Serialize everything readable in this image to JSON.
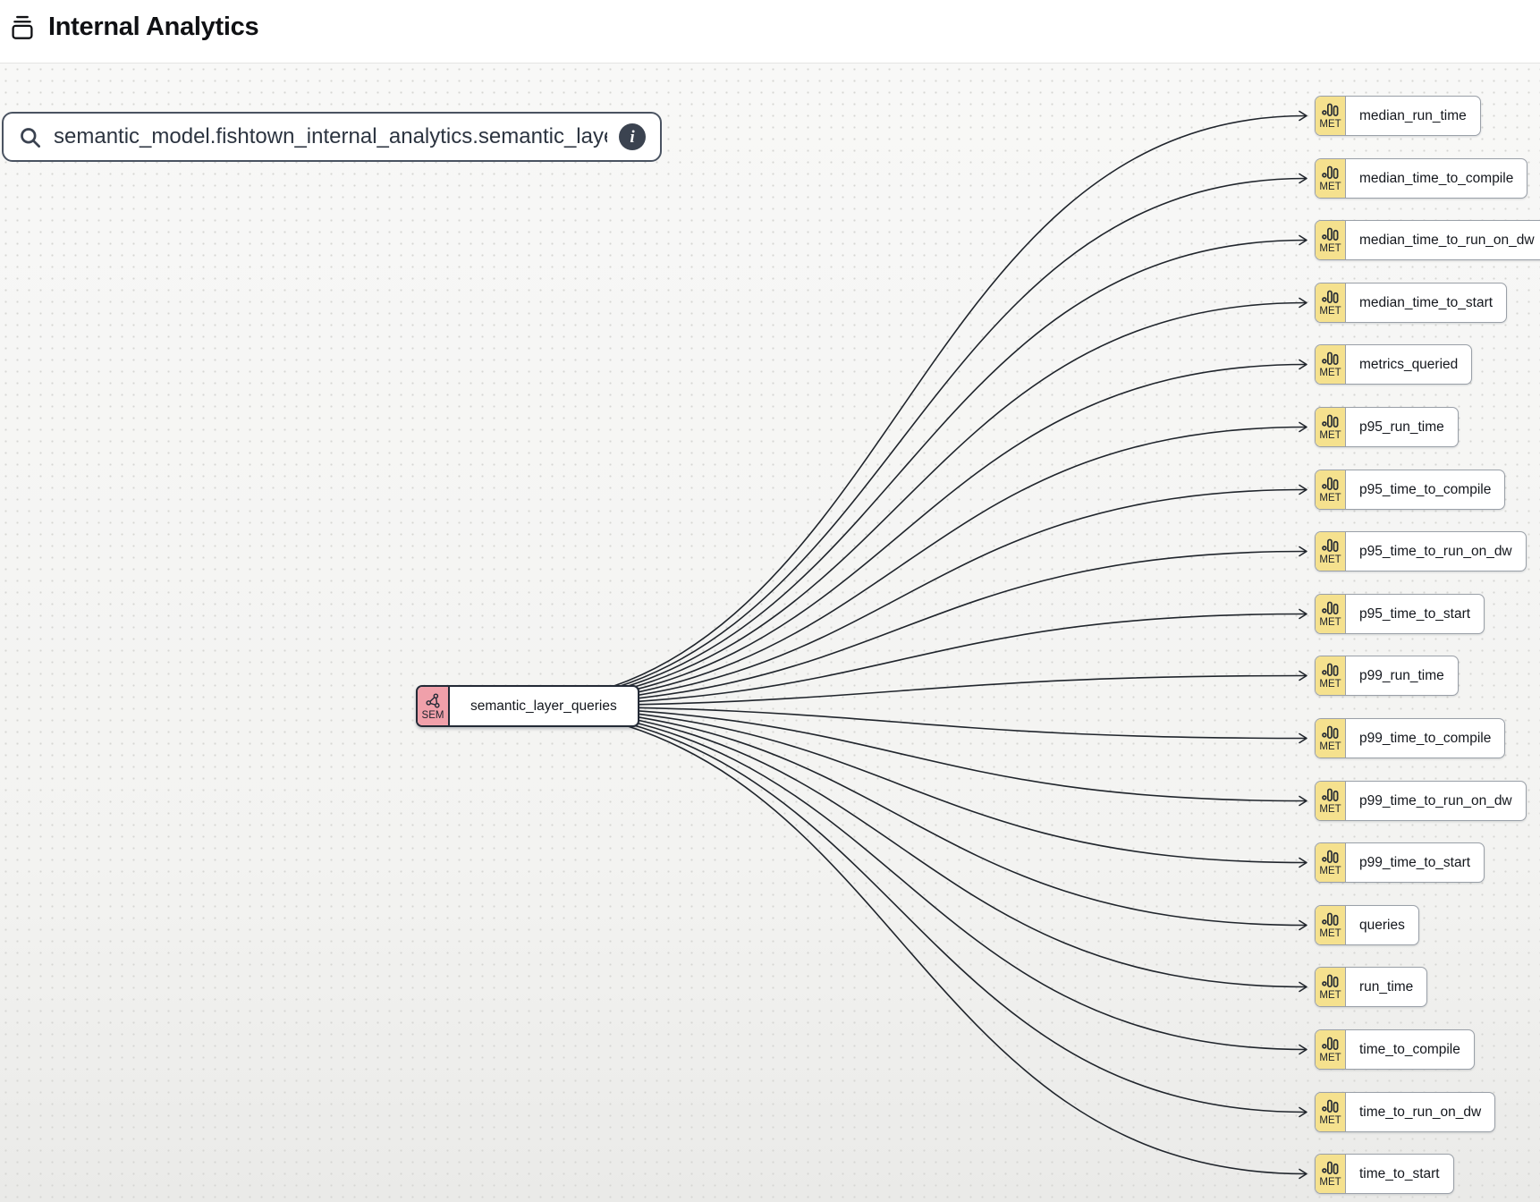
{
  "header": {
    "title": "Internal Analytics"
  },
  "search": {
    "value": "semantic_model.fishtown_internal_analytics.semantic_layer_queries",
    "info_label": "i"
  },
  "lineage": {
    "source_node": {
      "badge": "SEM",
      "label": "semantic_layer_queries"
    },
    "metric_badge": "MET",
    "metric_nodes": [
      {
        "label": "median_run_time"
      },
      {
        "label": "median_time_to_compile"
      },
      {
        "label": "median_time_to_run_on_dw"
      },
      {
        "label": "median_time_to_start"
      },
      {
        "label": "metrics_queried"
      },
      {
        "label": "p95_run_time"
      },
      {
        "label": "p95_time_to_compile"
      },
      {
        "label": "p95_time_to_run_on_dw"
      },
      {
        "label": "p95_time_to_start"
      },
      {
        "label": "p99_run_time"
      },
      {
        "label": "p99_time_to_compile"
      },
      {
        "label": "p99_time_to_run_on_dw"
      },
      {
        "label": "p99_time_to_start"
      },
      {
        "label": "queries"
      },
      {
        "label": "run_time"
      },
      {
        "label": "time_to_compile"
      },
      {
        "label": "time_to_run_on_dw"
      },
      {
        "label": "time_to_start"
      }
    ]
  },
  "colors": {
    "sem_badge": "#f0a0aa",
    "met_badge": "#f5e18e",
    "edge": "#20252c",
    "info_icon_bg": "#3b4350"
  }
}
